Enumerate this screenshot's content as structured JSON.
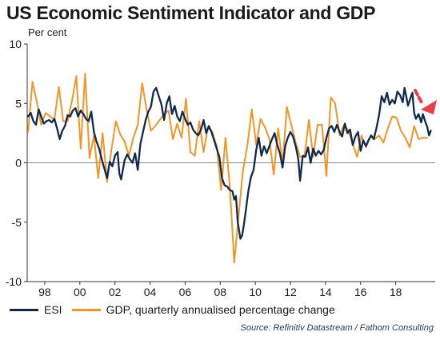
{
  "chart_data": {
    "type": "line",
    "title": "US Economic Sentiment Indicator and GDP",
    "ylabel": "Per cent",
    "xlim": [
      1997.0,
      2020.25
    ],
    "ylim": [
      -10,
      10
    ],
    "y_ticks": [
      10,
      5,
      0,
      -5,
      -10
    ],
    "x_ticks": [
      {
        "x": 1998,
        "label": "98"
      },
      {
        "x": 2000,
        "label": "00"
      },
      {
        "x": 2002,
        "label": "02"
      },
      {
        "x": 2004,
        "label": "04"
      },
      {
        "x": 2006,
        "label": "06"
      },
      {
        "x": 2008,
        "label": "08"
      },
      {
        "x": 2010,
        "label": "10"
      },
      {
        "x": 2012,
        "label": "12"
      },
      {
        "x": 2014,
        "label": "14"
      },
      {
        "x": 2016,
        "label": "16"
      },
      {
        "x": 2018,
        "label": "18"
      }
    ],
    "grid": false,
    "legend_position": "bottom",
    "source": "Source: Refinitiv Datastream / Fathom Consulting",
    "series": [
      {
        "name": "ESI",
        "color": "#0e2a4e",
        "points": [
          [
            1997.05,
            3.9
          ],
          [
            1997.2,
            4.2
          ],
          [
            1997.35,
            3.5
          ],
          [
            1997.5,
            3.2
          ],
          [
            1997.65,
            4.5
          ],
          [
            1997.8,
            3.9
          ],
          [
            1997.95,
            3.3
          ],
          [
            1998.1,
            3.5
          ],
          [
            1998.25,
            3.6
          ],
          [
            1998.4,
            3.4
          ],
          [
            1998.55,
            3.7
          ],
          [
            1998.7,
            2.9
          ],
          [
            1998.85,
            2.0
          ],
          [
            1999.0,
            2.7
          ],
          [
            1999.15,
            3.1
          ],
          [
            1999.3,
            4.0
          ],
          [
            1999.45,
            3.9
          ],
          [
            1999.6,
            4.4
          ],
          [
            1999.75,
            4.6
          ],
          [
            1999.9,
            3.9
          ],
          [
            2000.05,
            4.4
          ],
          [
            2000.2,
            4.1
          ],
          [
            2000.35,
            3.7
          ],
          [
            2000.5,
            3.5
          ],
          [
            2000.65,
            4.3
          ],
          [
            2000.8,
            2.6
          ],
          [
            2000.95,
            1.8
          ],
          [
            2001.1,
            1.2
          ],
          [
            2001.25,
            0.3
          ],
          [
            2001.4,
            -0.5
          ],
          [
            2001.55,
            -1.3
          ],
          [
            2001.7,
            0.1
          ],
          [
            2001.85,
            -0.3
          ],
          [
            2002.0,
            0.6
          ],
          [
            2002.15,
            0.9
          ],
          [
            2002.25,
            -0.9
          ],
          [
            2002.35,
            -1.4
          ],
          [
            2002.55,
            0.2
          ],
          [
            2002.7,
            0.7
          ],
          [
            2002.85,
            0.3
          ],
          [
            2003.0,
            0.0
          ],
          [
            2003.15,
            0.8
          ],
          [
            2003.3,
            -0.6
          ],
          [
            2003.45,
            1.6
          ],
          [
            2003.6,
            2.6
          ],
          [
            2003.75,
            3.6
          ],
          [
            2003.9,
            4.3
          ],
          [
            2004.05,
            4.7
          ],
          [
            2004.2,
            6.0
          ],
          [
            2004.35,
            6.3
          ],
          [
            2004.5,
            5.6
          ],
          [
            2004.65,
            4.9
          ],
          [
            2004.8,
            3.6
          ],
          [
            2004.95,
            5.0
          ],
          [
            2005.1,
            5.6
          ],
          [
            2005.25,
            4.1
          ],
          [
            2005.4,
            4.8
          ],
          [
            2005.55,
            3.9
          ],
          [
            2005.7,
            3.5
          ],
          [
            2005.85,
            4.3
          ],
          [
            2006.0,
            3.7
          ],
          [
            2006.15,
            3.2
          ],
          [
            2006.3,
            3.4
          ],
          [
            2006.45,
            2.8
          ],
          [
            2006.6,
            2.5
          ],
          [
            2006.75,
            2.3
          ],
          [
            2006.9,
            2.8
          ],
          [
            2007.05,
            3.6
          ],
          [
            2007.2,
            2.5
          ],
          [
            2007.35,
            3.1
          ],
          [
            2007.5,
            2.6
          ],
          [
            2007.65,
            1.9
          ],
          [
            2007.8,
            1.2
          ],
          [
            2007.95,
            0.5
          ],
          [
            2008.1,
            -1.3
          ],
          [
            2008.25,
            -1.9
          ],
          [
            2008.4,
            -2.0
          ],
          [
            2008.55,
            -2.3
          ],
          [
            2008.7,
            -2.4
          ],
          [
            2008.8,
            -3.1
          ],
          [
            2008.9,
            -2.8
          ],
          [
            2009.0,
            -5.0
          ],
          [
            2009.15,
            -6.4
          ],
          [
            2009.25,
            -6.1
          ],
          [
            2009.35,
            -5.2
          ],
          [
            2009.45,
            -4.1
          ],
          [
            2009.6,
            -2.4
          ],
          [
            2009.75,
            -1.2
          ],
          [
            2009.9,
            -0.6
          ],
          [
            2010.05,
            1.1
          ],
          [
            2010.2,
            2.1
          ],
          [
            2010.35,
            0.6
          ],
          [
            2010.5,
            1.4
          ],
          [
            2010.65,
            0.8
          ],
          [
            2010.8,
            1.4
          ],
          [
            2010.95,
            2.0
          ],
          [
            2011.1,
            2.5
          ],
          [
            2011.25,
            1.5
          ],
          [
            2011.4,
            0.8
          ],
          [
            2011.55,
            -0.4
          ],
          [
            2011.7,
            1.4
          ],
          [
            2011.85,
            2.1
          ],
          [
            2012.0,
            2.6
          ],
          [
            2012.15,
            2.2
          ],
          [
            2012.3,
            1.4
          ],
          [
            2012.45,
            0.3
          ],
          [
            2012.55,
            -1.5
          ],
          [
            2012.7,
            0.6
          ],
          [
            2012.85,
            0.5
          ],
          [
            2013.0,
            1.3
          ],
          [
            2013.15,
            0.0
          ],
          [
            2013.3,
            1.2
          ],
          [
            2013.45,
            0.6
          ],
          [
            2013.6,
            1.0
          ],
          [
            2013.75,
            0.7
          ],
          [
            2013.9,
            1.1
          ],
          [
            2014.05,
            2.1
          ],
          [
            2014.2,
            2.9
          ],
          [
            2014.35,
            3.1
          ],
          [
            2014.5,
            2.6
          ],
          [
            2014.65,
            3.2
          ],
          [
            2014.8,
            2.6
          ],
          [
            2014.95,
            2.2
          ],
          [
            2015.1,
            3.3
          ],
          [
            2015.25,
            2.5
          ],
          [
            2015.4,
            2.8
          ],
          [
            2015.55,
            1.5
          ],
          [
            2015.7,
            2.2
          ],
          [
            2015.85,
            2.6
          ],
          [
            2016.0,
            1.0
          ],
          [
            2016.15,
            1.9
          ],
          [
            2016.3,
            1.4
          ],
          [
            2016.45,
            1.9
          ],
          [
            2016.6,
            2.3
          ],
          [
            2016.75,
            2.0
          ],
          [
            2016.9,
            2.9
          ],
          [
            2017.05,
            4.0
          ],
          [
            2017.2,
            5.6
          ],
          [
            2017.35,
            5.1
          ],
          [
            2017.5,
            5.9
          ],
          [
            2017.65,
            4.9
          ],
          [
            2017.8,
            5.3
          ],
          [
            2017.95,
            5.0
          ],
          [
            2018.1,
            6.0
          ],
          [
            2018.25,
            5.7
          ],
          [
            2018.4,
            5.1
          ],
          [
            2018.5,
            6.3
          ],
          [
            2018.6,
            5.6
          ],
          [
            2018.7,
            4.8
          ],
          [
            2018.85,
            5.5
          ],
          [
            2018.95,
            5.9
          ],
          [
            2019.05,
            4.2
          ],
          [
            2019.15,
            3.7
          ],
          [
            2019.3,
            4.1
          ],
          [
            2019.45,
            3.4
          ],
          [
            2019.55,
            4.1
          ],
          [
            2019.7,
            3.4
          ],
          [
            2019.8,
            3.0
          ],
          [
            2019.9,
            2.3
          ],
          [
            2020.0,
            2.7
          ]
        ]
      },
      {
        "name": "GDP, quarterly annualised percentage change",
        "color": "#f39425",
        "points": [
          [
            1997.05,
            2.6
          ],
          [
            1997.3,
            6.8
          ],
          [
            1997.55,
            5.1
          ],
          [
            1997.8,
            3.2
          ],
          [
            1998.05,
            4.2
          ],
          [
            1998.3,
            3.9
          ],
          [
            1998.55,
            3.6
          ],
          [
            1998.8,
            6.4
          ],
          [
            1999.05,
            3.5
          ],
          [
            1999.3,
            3.5
          ],
          [
            1999.55,
            5.2
          ],
          [
            1999.8,
            7.3
          ],
          [
            2000.05,
            1.2
          ],
          [
            2000.3,
            7.5
          ],
          [
            2000.55,
            0.4
          ],
          [
            2000.8,
            2.3
          ],
          [
            2001.05,
            -1.3
          ],
          [
            2001.3,
            2.5
          ],
          [
            2001.55,
            -1.6
          ],
          [
            2001.8,
            1.1
          ],
          [
            2002.05,
            3.5
          ],
          [
            2002.3,
            2.4
          ],
          [
            2002.55,
            1.8
          ],
          [
            2002.8,
            0.6
          ],
          [
            2003.05,
            2.1
          ],
          [
            2003.3,
            3.2
          ],
          [
            2003.55,
            6.7
          ],
          [
            2003.8,
            4.5
          ],
          [
            2004.05,
            2.7
          ],
          [
            2004.3,
            3.1
          ],
          [
            2004.55,
            3.6
          ],
          [
            2004.8,
            4.1
          ],
          [
            2005.05,
            4.4
          ],
          [
            2005.3,
            2.0
          ],
          [
            2005.55,
            3.3
          ],
          [
            2005.8,
            2.1
          ],
          [
            2006.05,
            5.4
          ],
          [
            2006.3,
            0.9
          ],
          [
            2006.55,
            0.6
          ],
          [
            2006.8,
            3.5
          ],
          [
            2007.05,
            0.9
          ],
          [
            2007.3,
            3.0
          ],
          [
            2007.55,
            2.6
          ],
          [
            2007.8,
            1.4
          ],
          [
            2008.05,
            -2.3
          ],
          [
            2008.3,
            2.1
          ],
          [
            2008.55,
            -2.1
          ],
          [
            2008.8,
            -8.4
          ],
          [
            2009.05,
            -4.4
          ],
          [
            2009.3,
            -0.6
          ],
          [
            2009.55,
            1.5
          ],
          [
            2009.8,
            4.5
          ],
          [
            2010.05,
            1.5
          ],
          [
            2010.3,
            3.7
          ],
          [
            2010.55,
            3.0
          ],
          [
            2010.8,
            2.0
          ],
          [
            2011.05,
            -1.0
          ],
          [
            2011.3,
            2.9
          ],
          [
            2011.55,
            -0.1
          ],
          [
            2011.8,
            4.7
          ],
          [
            2012.05,
            3.2
          ],
          [
            2012.3,
            1.7
          ],
          [
            2012.55,
            0.5
          ],
          [
            2012.8,
            0.5
          ],
          [
            2013.05,
            3.6
          ],
          [
            2013.3,
            0.5
          ],
          [
            2013.55,
            3.2
          ],
          [
            2013.8,
            3.2
          ],
          [
            2014.05,
            -1.1
          ],
          [
            2014.3,
            5.5
          ],
          [
            2014.55,
            5.0
          ],
          [
            2014.8,
            2.3
          ],
          [
            2015.05,
            3.2
          ],
          [
            2015.3,
            2.7
          ],
          [
            2015.55,
            1.6
          ],
          [
            2015.8,
            0.5
          ],
          [
            2016.05,
            2.3
          ],
          [
            2016.3,
            1.3
          ],
          [
            2016.55,
            2.2
          ],
          [
            2016.8,
            2.0
          ],
          [
            2017.05,
            2.3
          ],
          [
            2017.3,
            1.7
          ],
          [
            2017.55,
            2.9
          ],
          [
            2017.8,
            3.9
          ],
          [
            2018.05,
            3.8
          ],
          [
            2018.3,
            2.7
          ],
          [
            2018.55,
            2.1
          ],
          [
            2018.8,
            1.3
          ],
          [
            2019.05,
            3.1
          ],
          [
            2019.3,
            2.0
          ],
          [
            2019.55,
            2.1
          ],
          [
            2019.8,
            2.1
          ]
        ]
      }
    ]
  }
}
